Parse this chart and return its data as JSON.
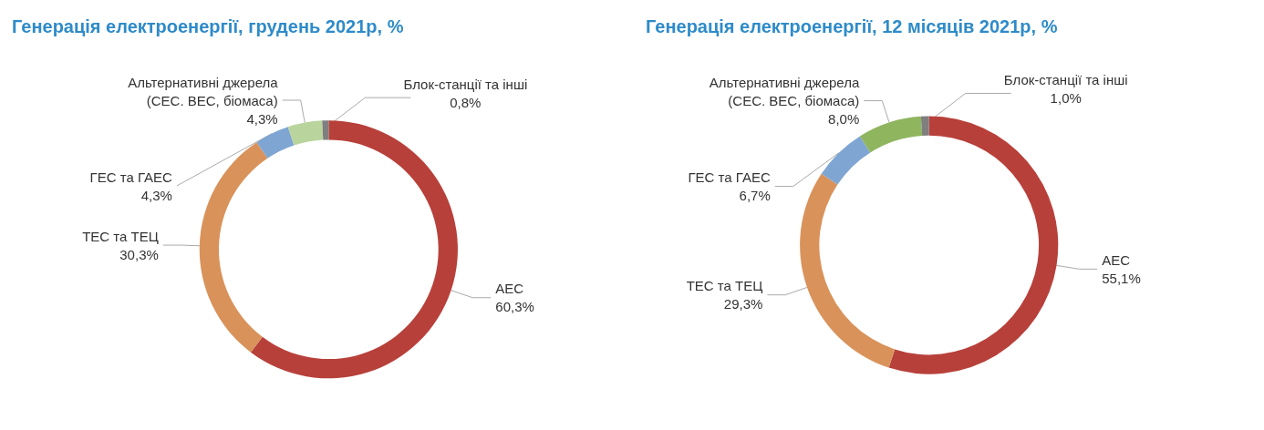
{
  "chart_data": [
    {
      "type": "donut",
      "title": "Генерація електроенергії, грудень 2021р, %",
      "categories": [
        "АЕС",
        "ТЕС та ТЕЦ",
        "ГЕС та ГАЕС",
        "Альтернативні джерела (СЕС. ВЕС, біомаса)",
        "Блок-станції та інші"
      ],
      "values": [
        60.3,
        30.3,
        4.3,
        4.3,
        0.8
      ],
      "colors": [
        "#b8403a",
        "#d9925a",
        "#7fa6d3",
        "#b9d49c",
        "#7f7f7f"
      ],
      "value_labels": [
        "60,3%",
        "30,3%",
        "4,3%",
        "4,3%",
        "0,8%"
      ]
    },
    {
      "type": "donut",
      "title": "Генерація електроенергії, 12 місяців 2021р, %",
      "categories": [
        "АЕС",
        "ТЕС та ТЕЦ",
        "ГЕС та ГАЕС",
        "Альтернативні джерела (СЕС. ВЕС, біомаса)",
        "Блок-станції та інші"
      ],
      "values": [
        55.1,
        29.3,
        6.7,
        8.0,
        1.0
      ],
      "colors": [
        "#b8403a",
        "#d9925a",
        "#7fa6d3",
        "#8fb55e",
        "#7f7f7f"
      ],
      "value_labels": [
        "55,1%",
        "29,3%",
        "6,7%",
        "8,0%",
        "1,0%"
      ]
    }
  ]
}
